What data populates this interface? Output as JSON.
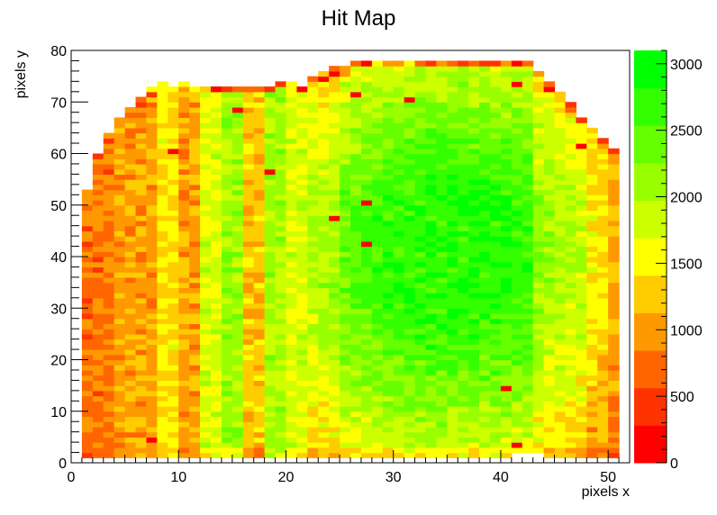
{
  "chart_data": {
    "type": "heatmap",
    "title": "Hit Map",
    "xlabel": "pixels x",
    "ylabel": "pixels y",
    "xlim": [
      0,
      52
    ],
    "ylim": [
      0,
      80
    ],
    "x_ticks": [
      "0",
      "10",
      "20",
      "30",
      "40",
      "50"
    ],
    "y_ticks": [
      "0",
      "10",
      "20",
      "30",
      "40",
      "50",
      "60",
      "70",
      "80"
    ],
    "bins": {
      "nx": 52,
      "ny": 80
    },
    "occupied_region": {
      "x_min": 1,
      "x_max": 51,
      "y_min": 1,
      "y_max": 78
    },
    "z_range": [
      0,
      3100
    ],
    "colorbar_ticks": [
      "0",
      "500",
      "1000",
      "1500",
      "2000",
      "2500",
      "3000"
    ],
    "colorbar_colors": [
      "#ff0000",
      "#ff3300",
      "#ff6600",
      "#ff9900",
      "#ffcc00",
      "#ffff00",
      "#ccff00",
      "#99ff00",
      "#66ff00",
      "#33ff00",
      "#00ff00"
    ],
    "column_mean_hits": [
      {
        "x_from": 1,
        "x_to": 4,
        "value": 800
      },
      {
        "x_from": 4,
        "x_to": 8,
        "value": 1050
      },
      {
        "x_from": 8,
        "x_to": 10,
        "value": 1450
      },
      {
        "x_from": 10,
        "x_to": 12,
        "value": 1050
      },
      {
        "x_from": 12,
        "x_to": 14,
        "value": 1750
      },
      {
        "x_from": 14,
        "x_to": 16,
        "value": 2100
      },
      {
        "x_from": 16,
        "x_to": 18,
        "value": 1250
      },
      {
        "x_from": 18,
        "x_to": 20,
        "value": 2050
      },
      {
        "x_from": 20,
        "x_to": 22,
        "value": 1750
      },
      {
        "x_from": 22,
        "x_to": 25,
        "value": 2450
      },
      {
        "x_from": 25,
        "x_to": 43,
        "value": 2750
      },
      {
        "x_from": 43,
        "x_to": 48,
        "value": 2300
      },
      {
        "x_from": 48,
        "x_to": 50,
        "value": 1900
      },
      {
        "x_from": 50,
        "x_to": 51,
        "value": 1500
      }
    ],
    "top_edge_hits": 400
  }
}
